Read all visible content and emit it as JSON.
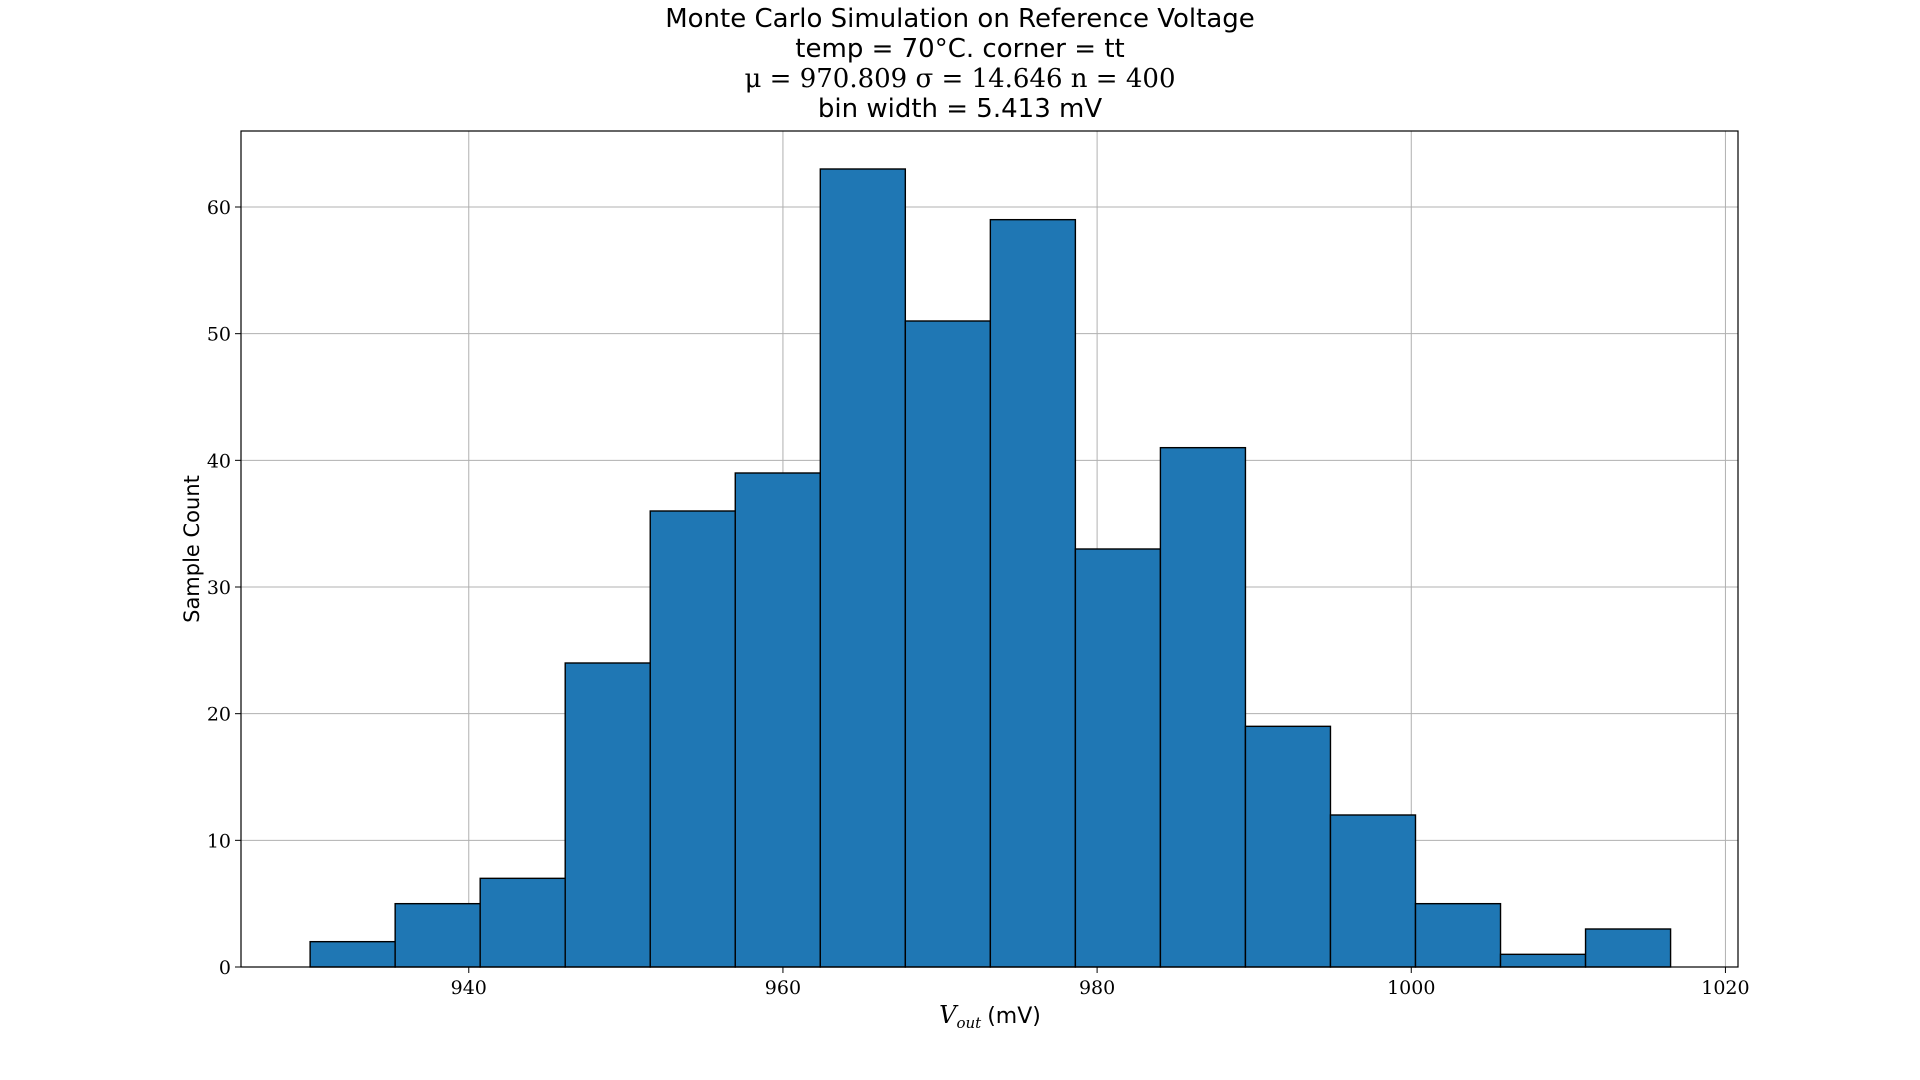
{
  "chart_data": {
    "type": "bar",
    "title": "Monte Carlo Simulation on Reference Voltage",
    "subtitle_lines": [
      "temp = 70°C. corner = tt",
      "μ = 970.809 σ = 14.646 n = 400",
      "bin width = 5.413 mV"
    ],
    "xlabel_main": "V",
    "xlabel_sub": "out",
    "xlabel_unit": "(mV)",
    "ylabel": "Sample Count",
    "xlim": [
      925.5,
      1020.8
    ],
    "ylim": [
      0,
      66
    ],
    "bin_width": 5.413,
    "bin_start": 929.9,
    "values": [
      2,
      5,
      7,
      24,
      36,
      39,
      63,
      51,
      59,
      33,
      41,
      19,
      12,
      5,
      1,
      3
    ],
    "x_ticks": [
      940,
      960,
      980,
      1000,
      1020
    ],
    "y_ticks": [
      0,
      10,
      20,
      30,
      40,
      50,
      60
    ],
    "grid": true,
    "bar_color": "#1f77b4",
    "edge_color": "#000000"
  }
}
